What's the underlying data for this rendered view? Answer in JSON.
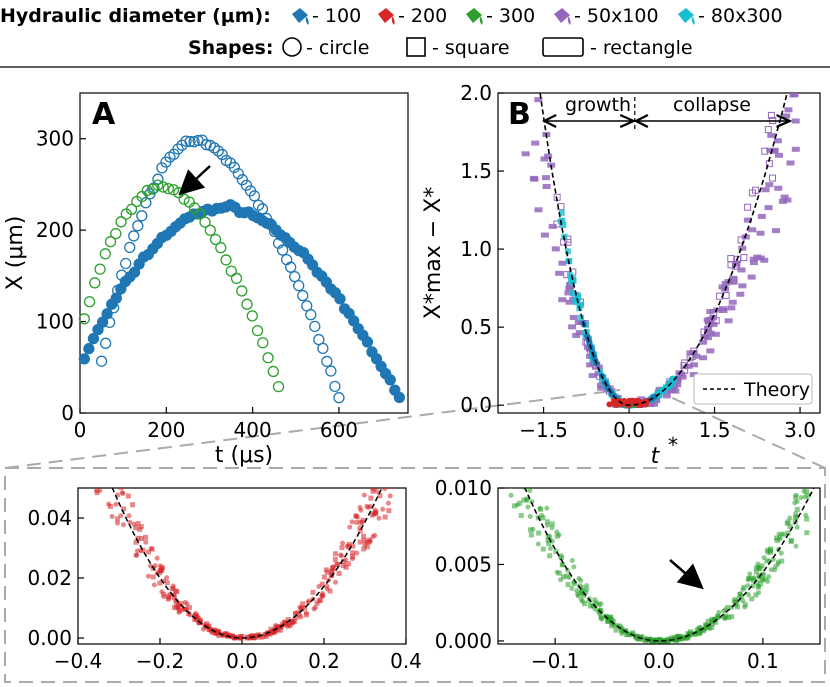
{
  "legend": {
    "hydraulic_title": "Hydraulic diameter (μm):",
    "shapes_title": "Shapes:",
    "items": [
      {
        "label": "- 100",
        "color": "#1f77b4"
      },
      {
        "label": "- 200",
        "color": "#d62728"
      },
      {
        "label": "- 300",
        "color": "#2ca02c"
      },
      {
        "label": "- 50x100",
        "color": "#9467bd"
      },
      {
        "label": "- 80x300",
        "color": "#17becf"
      }
    ],
    "shapes": [
      {
        "label": "- circle"
      },
      {
        "label": "- square"
      },
      {
        "label": "- rectangle"
      }
    ]
  },
  "chart_data": [
    {
      "id": "A",
      "type": "scatter",
      "panel_label": "A",
      "xlabel": "t (μs)",
      "ylabel": "X (μm)",
      "xlim": [
        0,
        760
      ],
      "ylim": [
        0,
        350
      ],
      "xticks": [
        0,
        200,
        400,
        600
      ],
      "yticks": [
        0,
        100,
        200,
        300
      ],
      "annotation": "arrow pointing at the filled blue series near (230 μs, 225 μm)",
      "series": [
        {
          "name": "100 μm circle (filled)",
          "color": "#1f77b4",
          "fill": true,
          "shape": "parabola",
          "t_start": 10,
          "t_end": 740,
          "t_peak": 340,
          "x_peak": 225,
          "x_start": 60,
          "x_end": 15,
          "n": 70
        },
        {
          "name": "100 μm circle (open)",
          "color": "#1f77b4",
          "fill": false,
          "shape": "parabola",
          "t_start": 50,
          "t_end": 600,
          "t_peak": 270,
          "x_peak": 297,
          "x_start": 60,
          "x_end": 18,
          "n": 60
        },
        {
          "name": "300 μm circle (open)",
          "color": "#2ca02c",
          "fill": false,
          "shape": "parabola",
          "t_start": 10,
          "t_end": 460,
          "t_peak": 190,
          "x_peak": 248,
          "x_start": 105,
          "x_end": 28,
          "n": 38
        }
      ]
    },
    {
      "id": "B",
      "type": "scatter",
      "panel_label": "B",
      "xlabel": "t*",
      "ylabel": "X*max − X*",
      "xlim": [
        -2.3,
        3.35
      ],
      "ylim": [
        -0.05,
        2.0
      ],
      "xticks": [
        -1.5,
        0.0,
        1.5,
        3.0
      ],
      "xtick_labels": [
        "−1.5",
        "0.0",
        "1.5",
        "3.0"
      ],
      "yticks": [
        0.0,
        0.5,
        1.0,
        1.5,
        2.0
      ],
      "ytick_labels": [
        "0.0",
        "0.5",
        "1.0",
        "1.5",
        "2.0"
      ],
      "growth_label": "growth",
      "collapse_label": "collapse",
      "legend_label": "Theory",
      "theory": {
        "coef_negative": 0.82,
        "coef_positive": 0.26
      }
    },
    {
      "id": "C",
      "type": "scatter",
      "series_color": "#d62728",
      "xlim": [
        -0.4,
        0.4
      ],
      "ylim": [
        -0.002,
        0.05
      ],
      "xticks": [
        -0.4,
        -0.2,
        0.0,
        0.2,
        0.4
      ],
      "xtick_labels": [
        "−0.4",
        "−0.2",
        "0.0",
        "0.2",
        "0.4"
      ],
      "yticks": [
        0.0,
        0.02,
        0.04
      ],
      "ytick_labels": [
        "0.00",
        "0.02",
        "0.04"
      ],
      "theory": {
        "coef_negative": 0.5,
        "coef_positive": 0.43
      }
    },
    {
      "id": "D",
      "type": "scatter",
      "series_color": "#2ca02c",
      "xlim": [
        -0.155,
        0.155
      ],
      "ylim": [
        -0.0002,
        0.01
      ],
      "xticks": [
        -0.1,
        0.0,
        0.1
      ],
      "xtick_labels": [
        "−0.1",
        "0.0",
        "0.1"
      ],
      "yticks": [
        0.0,
        0.005,
        0.01
      ],
      "ytick_labels": [
        "0.000",
        "0.005",
        "0.010"
      ],
      "annotation": "arrow pointing at data near (0.04, 0.0022)",
      "theory": {
        "coef_negative": 0.6,
        "coef_positive": 0.45
      }
    }
  ]
}
